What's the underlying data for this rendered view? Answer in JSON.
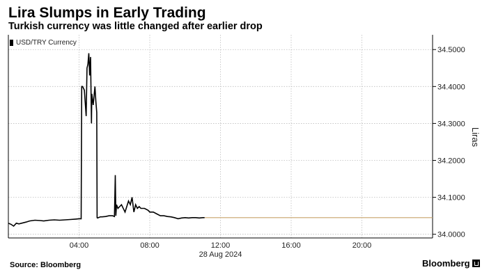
{
  "header": {
    "title": "Lira Slumps in Early Trading",
    "subtitle": "Turkish currency was little changed after earlier drop"
  },
  "footer": {
    "source": "Source: Bloomberg",
    "brand": "Bloomberg"
  },
  "chart_data": {
    "type": "line",
    "title": "Lira Slumps in Early Trading",
    "subtitle": "Turkish currency was little changed after earlier drop",
    "ylabel": "Liras",
    "xlabel": "",
    "x_range_hours": [
      0,
      24
    ],
    "ylim": [
      33.99,
      34.54
    ],
    "y_ticks": [
      34.0,
      34.1,
      34.2,
      34.3,
      34.4,
      34.5
    ],
    "y_tick_labels": [
      "34.0000",
      "34.1000",
      "34.2000",
      "34.3000",
      "34.4000",
      "34.5000"
    ],
    "x_ticks": [
      4,
      8,
      12,
      16,
      20
    ],
    "x_tick_labels": [
      "04:00",
      "08:00",
      "12:00",
      "16:00",
      "20:00"
    ],
    "date_label": "28 Aug 2024",
    "grid": true,
    "legend_position": "top-left",
    "reference_line": {
      "value": 34.045,
      "color": "#c8a26a",
      "from_hour": 11.1
    },
    "series": [
      {
        "name": "USD/TRY Currency",
        "color": "#000000",
        "x": [
          0.0,
          0.15,
          0.3,
          0.45,
          0.6,
          1.0,
          1.2,
          1.5,
          1.8,
          2.0,
          2.3,
          2.6,
          2.9,
          3.2,
          3.5,
          3.8,
          4.0,
          4.12,
          4.15,
          4.2,
          4.3,
          4.4,
          4.45,
          4.5,
          4.55,
          4.6,
          4.65,
          4.7,
          4.72,
          4.8,
          4.9,
          4.95,
          5.0,
          5.02,
          5.05,
          5.1,
          5.15,
          5.2,
          5.3,
          5.5,
          5.7,
          5.9,
          6.0,
          6.05,
          6.08,
          6.12,
          6.2,
          6.4,
          6.6,
          6.8,
          6.9,
          7.0,
          7.1,
          7.2,
          7.3,
          7.4,
          7.5,
          7.7,
          7.9,
          8.0,
          8.2,
          8.4,
          8.6,
          8.8,
          9.0,
          9.2,
          9.4,
          9.6,
          9.8,
          10.0,
          10.2,
          10.4,
          10.6,
          10.8,
          11.0,
          11.1
        ],
        "values": [
          34.03,
          34.027,
          34.022,
          34.03,
          34.028,
          34.033,
          34.036,
          34.038,
          34.037,
          34.036,
          34.038,
          34.039,
          34.038,
          34.039,
          34.04,
          34.041,
          34.042,
          34.042,
          34.4,
          34.4,
          34.39,
          34.32,
          34.45,
          34.46,
          34.49,
          34.43,
          34.48,
          34.3,
          34.38,
          34.35,
          34.4,
          34.36,
          34.33,
          34.045,
          34.044,
          34.045,
          34.046,
          34.047,
          34.047,
          34.048,
          34.05,
          34.05,
          34.048,
          34.16,
          34.05,
          34.08,
          34.07,
          34.08,
          34.06,
          34.09,
          34.08,
          34.1,
          34.06,
          34.08,
          34.07,
          34.075,
          34.07,
          34.07,
          34.065,
          34.06,
          34.06,
          34.055,
          34.05,
          34.05,
          34.048,
          34.047,
          34.045,
          34.042,
          34.044,
          34.045,
          34.044,
          34.045,
          34.045,
          34.044,
          34.045,
          34.045
        ]
      }
    ]
  }
}
